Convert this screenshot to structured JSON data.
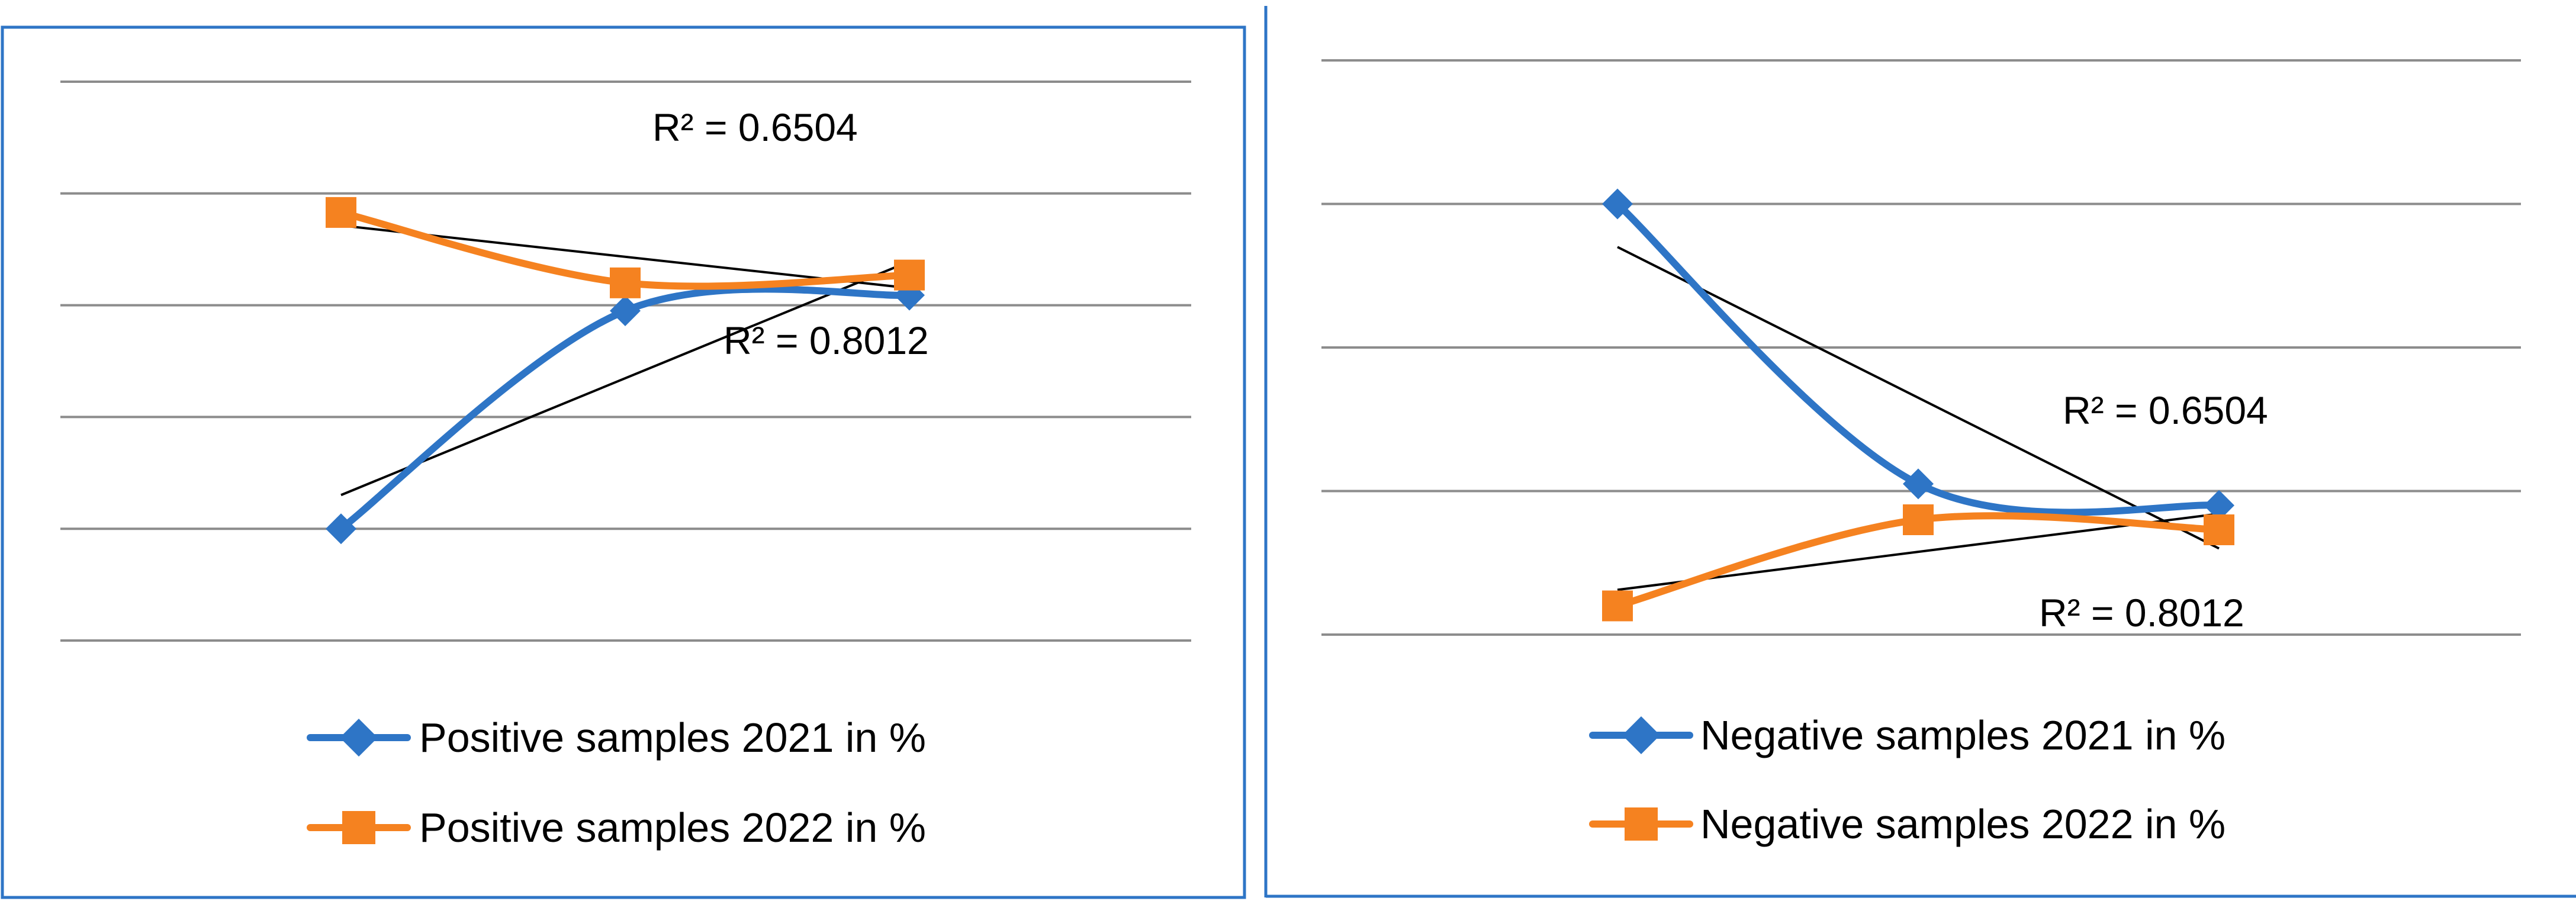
{
  "chart_data": [
    {
      "type": "line",
      "title": "",
      "xlabel": "",
      "ylabel": "",
      "x": [
        1,
        2,
        3
      ],
      "ylim": [
        0,
        5
      ],
      "grid": true,
      "legend": "bottom",
      "series": [
        {
          "name": "Positive samples 2021 in %",
          "values": [
            1.0,
            2.95,
            3.09
          ],
          "color": "#2e75c6",
          "marker": "diamond",
          "r2_label": "R² = 0.8012"
        },
        {
          "name": "Positive samples 2022 in %",
          "values": [
            3.83,
            3.2,
            3.27
          ],
          "color": "#f58220",
          "marker": "square",
          "r2_label": "R² = 0.6504"
        }
      ]
    },
    {
      "type": "line",
      "title": "",
      "xlabel": "",
      "ylabel": "",
      "x": [
        1,
        2,
        3
      ],
      "ylim": [
        0,
        4
      ],
      "grid": true,
      "legend": "bottom",
      "series": [
        {
          "name": "Negative samples 2021 in %",
          "values": [
            3.0,
            1.05,
            0.9
          ],
          "color": "#2e75c6",
          "marker": "diamond",
          "r2_label": "R² = 0.6504"
        },
        {
          "name": "Negative samples 2022 in %",
          "values": [
            0.2,
            0.8,
            0.73
          ],
          "color": "#f58220",
          "marker": "square",
          "r2_label": "R² = 0.8012"
        }
      ]
    }
  ]
}
